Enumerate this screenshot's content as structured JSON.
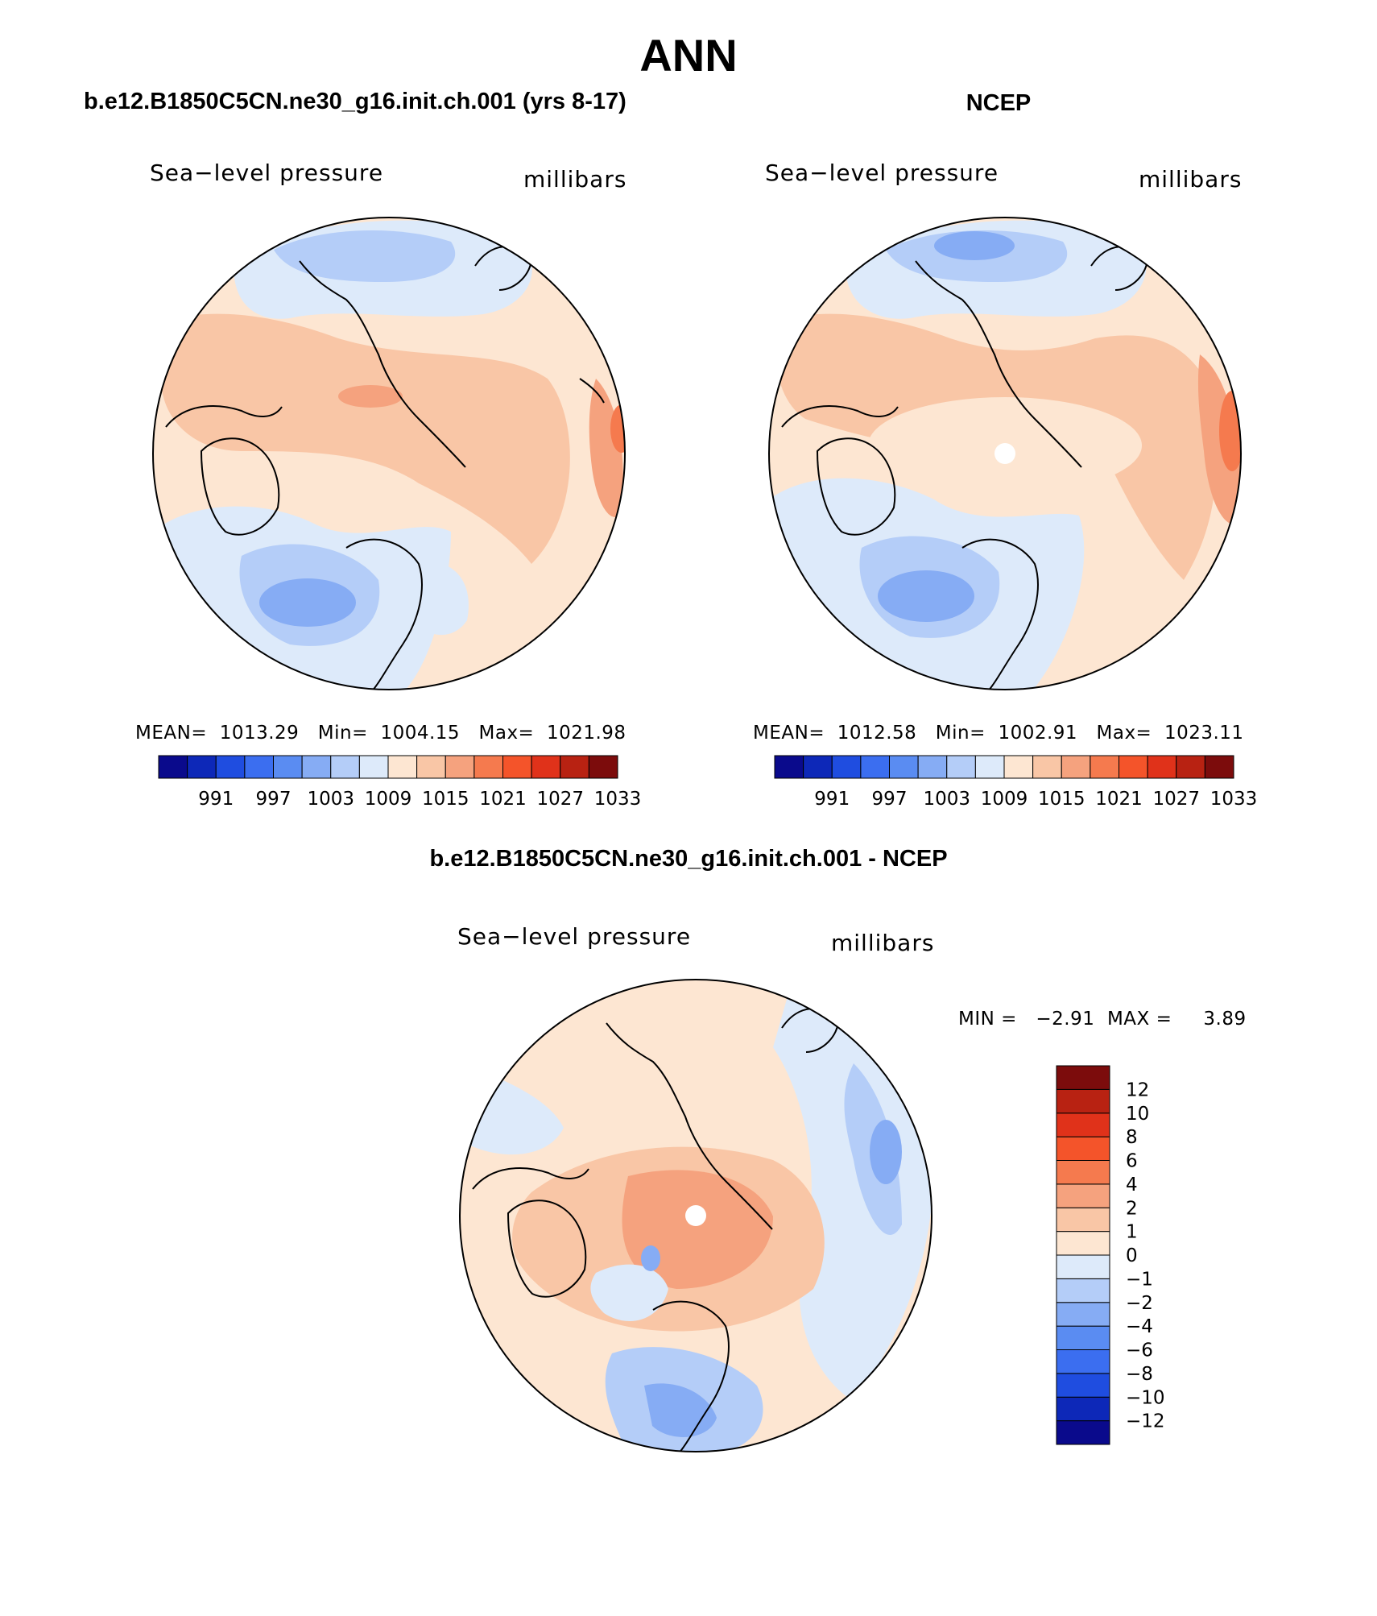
{
  "figure": {
    "title": "ANN"
  },
  "panels": [
    {
      "title": "b.e12.B1850C5CN.ne30_g16.init.ch.001 (yrs 8-17)",
      "variable": "Sea−level pressure",
      "units": "millibars",
      "stats": {
        "mean": "1013.29",
        "min": "1004.15",
        "max": "1021.98",
        "text": "MEAN=  1013.29   Min=  1004.15   Max=  1021.98"
      },
      "colorbar_labels": [
        "991",
        "997",
        "1003",
        "1009",
        "1015",
        "1021",
        "1027",
        "1033"
      ]
    },
    {
      "title": "NCEP",
      "variable": "Sea−level pressure",
      "units": "millibars",
      "stats": {
        "mean": "1012.58",
        "min": "1002.91",
        "max": "1023.11",
        "text": "MEAN=  1012.58   Min=  1002.91   Max=  1023.11"
      },
      "colorbar_labels": [
        "991",
        "997",
        "1003",
        "1009",
        "1015",
        "1021",
        "1027",
        "1033"
      ]
    },
    {
      "title": "b.e12.B1850C5CN.ne30_g16.init.ch.001 - NCEP",
      "variable": "Sea−level pressure",
      "units": "millibars",
      "stats": {
        "min": "−2.91",
        "max": "3.89",
        "text": "MIN =   −2.91  MAX =     3.89"
      },
      "colorbar_labels": [
        "12",
        "10",
        "8",
        "6",
        "4",
        "2",
        "1",
        "0",
        "−1",
        "−2",
        "−4",
        "−6",
        "−8",
        "−10",
        "−12"
      ]
    }
  ],
  "palettes": {
    "absolute": [
      "#0a0a8c",
      "#0d28b8",
      "#1f4de0",
      "#3b6ef0",
      "#5a8cf2",
      "#86acf4",
      "#b4cdf8",
      "#ddeafa",
      "#fde6d2",
      "#f9c6a6",
      "#f5a27e",
      "#f57a4e",
      "#f4542a",
      "#e0321a",
      "#b82212",
      "#7c0c0c"
    ],
    "difference": [
      "#0a0a8c",
      "#0d28b8",
      "#1f4de0",
      "#3b6ef0",
      "#5a8cf2",
      "#86acf4",
      "#b4cdf8",
      "#ddeafa",
      "#fde6d2",
      "#f9c6a6",
      "#f5a27e",
      "#f57a4e",
      "#f4542a",
      "#e0321a",
      "#b82212",
      "#7c0c0c"
    ]
  }
}
